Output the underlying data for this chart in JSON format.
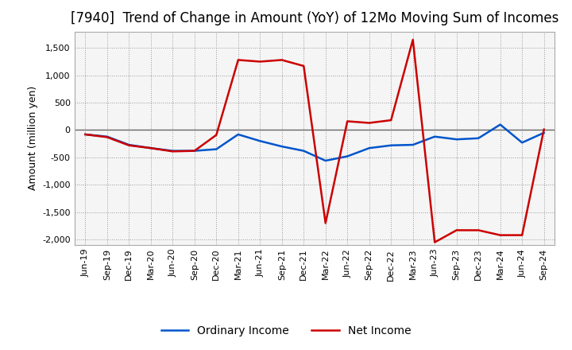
{
  "title": "[7940]  Trend of Change in Amount (YoY) of 12Mo Moving Sum of Incomes",
  "ylabel": "Amount (million yen)",
  "xlabels": [
    "Jun-19",
    "Sep-19",
    "Dec-19",
    "Mar-20",
    "Jun-20",
    "Sep-20",
    "Dec-20",
    "Mar-21",
    "Jun-21",
    "Sep-21",
    "Dec-21",
    "Mar-22",
    "Jun-22",
    "Sep-22",
    "Dec-22",
    "Mar-23",
    "Jun-23",
    "Sep-23",
    "Dec-23",
    "Mar-24",
    "Jun-24",
    "Sep-24"
  ],
  "ordinary_income": [
    -80,
    -120,
    -270,
    -330,
    -380,
    -380,
    -350,
    -80,
    -200,
    -300,
    -380,
    -560,
    -480,
    -330,
    -280,
    -270,
    -120,
    -170,
    -150,
    100,
    -230,
    -50
  ],
  "net_income": [
    -80,
    -130,
    -280,
    -330,
    -390,
    -380,
    -90,
    1280,
    1250,
    1280,
    1170,
    -1700,
    160,
    130,
    180,
    1650,
    -2050,
    -1830,
    -1830,
    -1920,
    -1920,
    10
  ],
  "ordinary_color": "#0055cc",
  "net_color": "#cc0000",
  "ylim": [
    -2100,
    1800
  ],
  "yticks": [
    -2000,
    -1500,
    -1000,
    -500,
    0,
    500,
    1000,
    1500
  ],
  "background_color": "#ffffff",
  "plot_bg_color": "#f5f5f5",
  "grid_color": "#999999",
  "zero_line_color": "#666666",
  "title_fontsize": 12,
  "axis_label_fontsize": 9,
  "tick_fontsize": 8,
  "legend_fontsize": 10
}
